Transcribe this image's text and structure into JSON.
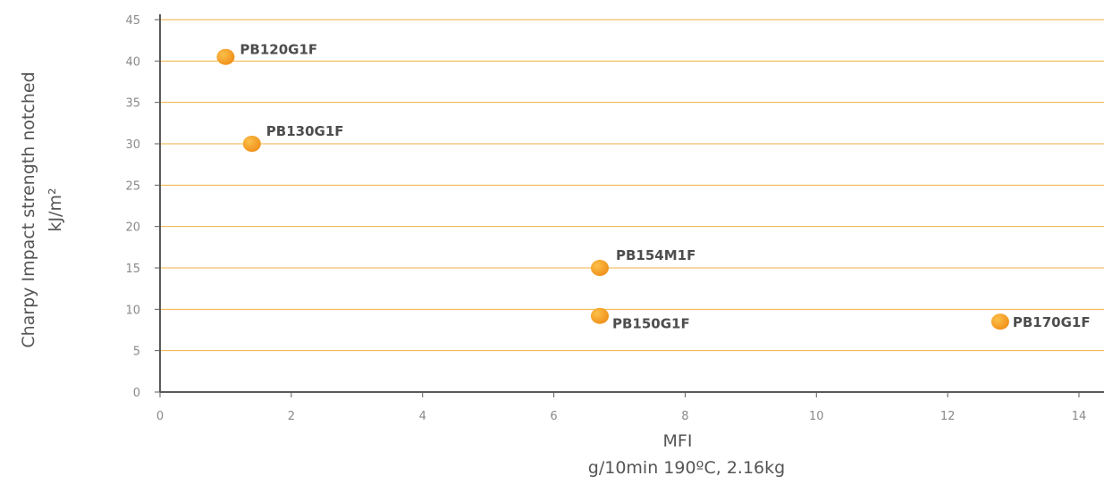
{
  "chart_data": {
    "type": "scatter",
    "xlabel": "MFI",
    "xlabel_unit": "g/10min 190ºC, 2.16kg",
    "ylabel": "Charpy Impact strength notched",
    "ylabel_unit": "kJ/m²",
    "xlim": [
      0,
      14
    ],
    "ylim": [
      0,
      45
    ],
    "x_ticks": [
      "0",
      "2",
      "4",
      "6",
      "8",
      "10",
      "12",
      "14"
    ],
    "y_ticks": [
      "0",
      "5",
      "10",
      "15",
      "20",
      "25",
      "30",
      "35",
      "40",
      "45"
    ],
    "grid": "horizontal",
    "points": [
      {
        "label": "PB120G1F",
        "x": 1.0,
        "y": 40.5
      },
      {
        "label": "PB130G1F",
        "x": 1.4,
        "y": 30
      },
      {
        "label": "PB154M1F",
        "x": 6.7,
        "y": 15
      },
      {
        "label": "PB150G1F",
        "x": 6.7,
        "y": 9.2
      },
      {
        "label": "PB170G1F",
        "x": 12.8,
        "y": 8.5
      }
    ]
  },
  "colors": {
    "grid": "#f0b040",
    "axis": "#5a5a5a",
    "marker": "#f39a1e",
    "marker_highlight": "#fbb941"
  }
}
